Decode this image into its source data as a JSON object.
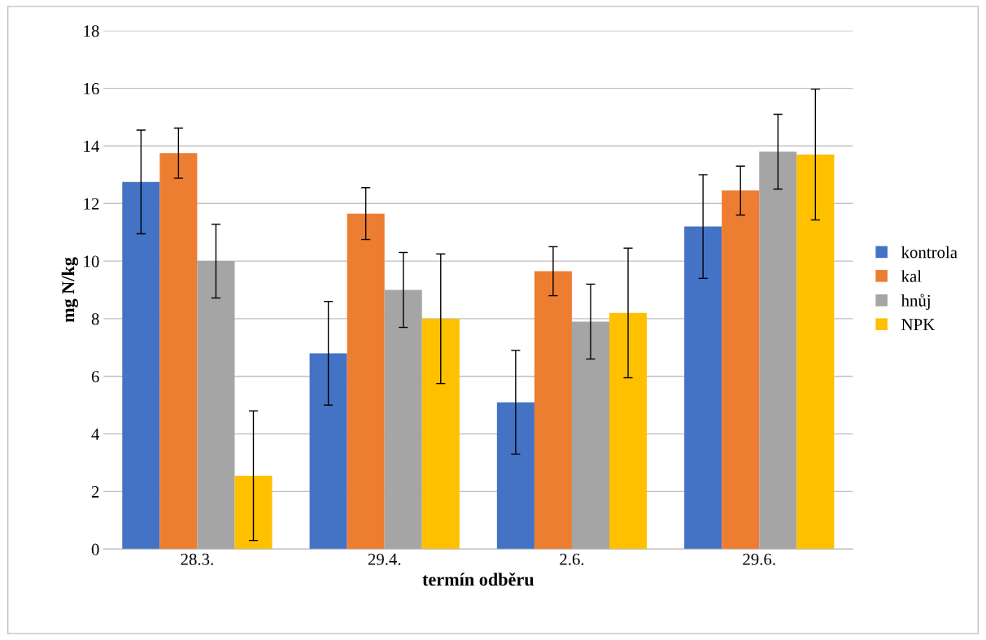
{
  "chart_data": {
    "type": "bar",
    "xlabel": "termín odběru",
    "ylabel": "mg N/kg",
    "categories": [
      "28.3.",
      "29.4.",
      "2.6.",
      "29.6."
    ],
    "series": [
      {
        "name": "kontrola",
        "color": "#4472c4",
        "values": [
          12.75,
          6.8,
          5.1,
          11.2
        ],
        "errors": [
          1.8,
          1.8,
          1.8,
          1.8
        ]
      },
      {
        "name": "kal",
        "color": "#ed7d31",
        "values": [
          13.75,
          11.65,
          9.65,
          12.45
        ],
        "errors": [
          0.87,
          0.9,
          0.85,
          0.85
        ]
      },
      {
        "name": "hnůj",
        "color": "#a5a5a5",
        "values": [
          10.0,
          9.0,
          7.9,
          13.8
        ],
        "errors": [
          1.28,
          1.3,
          1.3,
          1.3
        ]
      },
      {
        "name": "NPK",
        "color": "#ffc000",
        "values": [
          2.55,
          8.0,
          8.2,
          13.7
        ],
        "errors": [
          2.25,
          2.25,
          2.25,
          2.27
        ]
      }
    ],
    "ylim": [
      0,
      18
    ],
    "yticks": [
      0,
      2,
      4,
      6,
      8,
      10,
      12,
      14,
      16,
      18
    ],
    "grid": "y",
    "legend": "right"
  }
}
